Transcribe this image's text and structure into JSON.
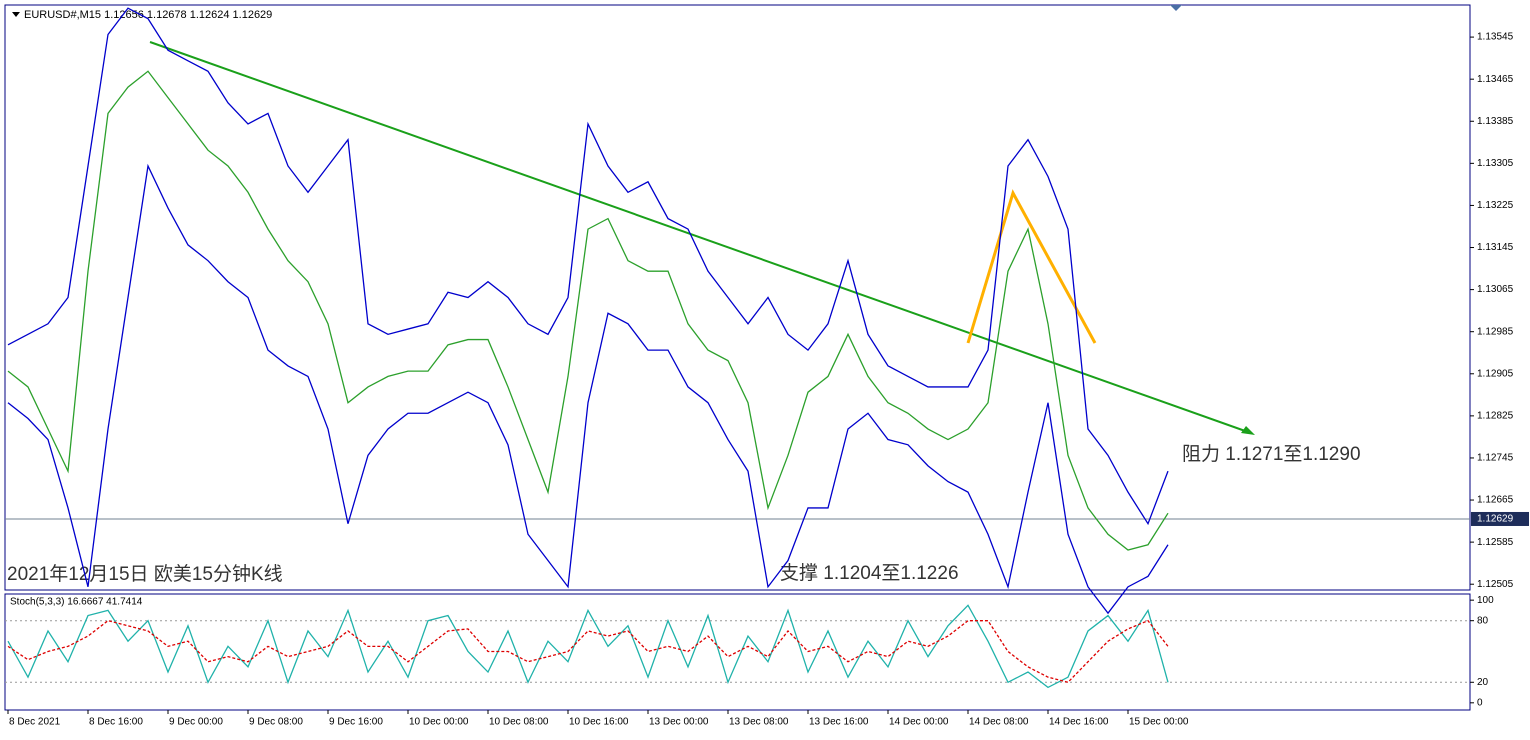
{
  "chart_data": [
    {
      "type": "line",
      "title": "EURUSD#,M15  1.12656 1.12678 1.12624 1.12629",
      "x": [
        0,
        2,
        4,
        6,
        8,
        10,
        12,
        14,
        16,
        18,
        20,
        22,
        24,
        26,
        28,
        30,
        32,
        34,
        36,
        38,
        40,
        42,
        44,
        46,
        48,
        50,
        52,
        54,
        56,
        58,
        60,
        62,
        64,
        66,
        68,
        70,
        72,
        74,
        76,
        78,
        80,
        82,
        84,
        86,
        88,
        90,
        92,
        94,
        96,
        98,
        100,
        102,
        104,
        106,
        108,
        110,
        112,
        114,
        116
      ],
      "series": [
        {
          "color": "#0000cc",
          "values": [
            1.1296,
            1.1298,
            1.13,
            1.1305,
            1.133,
            1.1355,
            1.136,
            1.1358,
            1.1352,
            1.135,
            1.1348,
            1.1342,
            1.1338,
            1.134,
            1.133,
            1.1325,
            1.133,
            1.1335,
            1.13,
            1.1298,
            1.1299,
            1.13,
            1.1306,
            1.1305,
            1.1308,
            1.1305,
            1.13,
            1.1298,
            1.1305,
            1.1338,
            1.133,
            1.1325,
            1.1327,
            1.132,
            1.1318,
            1.131,
            1.1305,
            1.13,
            1.1305,
            1.1298,
            1.1295,
            1.13,
            1.1312,
            1.1298,
            1.1292,
            1.129,
            1.1288,
            1.1288,
            1.1288,
            1.1295,
            1.133,
            1.1335,
            1.1328,
            1.1318,
            1.128,
            1.1275,
            1.1268,
            1.1262,
            1.1272
          ]
        },
        {
          "color": "#0000cc",
          "values": [
            1.1285,
            1.1282,
            1.1278,
            1.1265,
            1.125,
            1.128,
            1.1305,
            1.133,
            1.1322,
            1.1315,
            1.1312,
            1.1308,
            1.1305,
            1.1295,
            1.1292,
            1.129,
            1.128,
            1.1262,
            1.1275,
            1.128,
            1.1283,
            1.1283,
            1.1285,
            1.1287,
            1.1285,
            1.1277,
            1.126,
            1.1255,
            1.125,
            1.1285,
            1.1302,
            1.13,
            1.1295,
            1.1295,
            1.1288,
            1.1285,
            1.1278,
            1.1272,
            1.125,
            1.1255,
            1.1265,
            1.1265,
            1.128,
            1.1283,
            1.1278,
            1.1277,
            1.1273,
            1.127,
            1.1268,
            1.126,
            1.125,
            1.1268,
            1.1285,
            1.126,
            1.125,
            1.1245,
            1.125,
            1.1252,
            1.1258
          ]
        },
        {
          "color": "#2ca02c",
          "values": [
            1.1291,
            1.1288,
            1.128,
            1.1272,
            1.131,
            1.134,
            1.1345,
            1.1348,
            1.1343,
            1.1338,
            1.1333,
            1.133,
            1.1325,
            1.1318,
            1.1312,
            1.1308,
            1.13,
            1.1285,
            1.1288,
            1.129,
            1.1291,
            1.1291,
            1.1296,
            1.1297,
            1.1297,
            1.1288,
            1.1278,
            1.1268,
            1.129,
            1.1318,
            1.132,
            1.1312,
            1.131,
            1.131,
            1.13,
            1.1295,
            1.1293,
            1.1285,
            1.1265,
            1.1275,
            1.1287,
            1.129,
            1.1298,
            1.129,
            1.1285,
            1.1283,
            1.128,
            1.1278,
            1.128,
            1.1285,
            1.131,
            1.1318,
            1.13,
            1.1275,
            1.1265,
            1.126,
            1.1257,
            1.1258,
            1.1264
          ]
        }
      ],
      "current_price": 1.12629,
      "ylim": [
        1.12494,
        1.13606
      ],
      "yticks": [
        1.12505,
        1.12585,
        1.12665,
        1.12745,
        1.12825,
        1.12905,
        1.12985,
        1.13065,
        1.13145,
        1.13225,
        1.13305,
        1.13385,
        1.13465,
        1.13545
      ],
      "xlim": [
        -0.3,
        146.2
      ],
      "xticks": [
        {
          "value": 0,
          "label": "8 Dec 2021"
        },
        {
          "value": 8,
          "label": "8 Dec 16:00"
        },
        {
          "value": 16,
          "label": "9 Dec 00:00"
        },
        {
          "value": 24,
          "label": "9 Dec 08:00"
        },
        {
          "value": 32,
          "label": "9 Dec 16:00"
        },
        {
          "value": 40,
          "label": "10 Dec 00:00"
        },
        {
          "value": 48,
          "label": "10 Dec 08:00"
        },
        {
          "value": 56,
          "label": "10 Dec 16:00"
        },
        {
          "value": 64,
          "label": "13 Dec 00:00"
        },
        {
          "value": 72,
          "label": "13 Dec 08:00"
        },
        {
          "value": 80,
          "label": "13 Dec 16:00"
        },
        {
          "value": 88,
          "label": "14 Dec 00:00"
        },
        {
          "value": 96,
          "label": "14 Dec 08:00"
        },
        {
          "value": 104,
          "label": "14 Dec 16:00"
        },
        {
          "value": 112,
          "label": "15 Dec 00:00"
        }
      ],
      "annotations": [
        "2021年12月15日 欧美15分钟K线",
        "支撑 1.1204至1.1226",
        "阻力 1.1271至1.1290"
      ]
    },
    {
      "type": "line",
      "title": "Stoch(5,3,3) 16.6667 41.7414",
      "x": [
        0,
        2,
        4,
        6,
        8,
        10,
        12,
        14,
        16,
        18,
        20,
        22,
        24,
        26,
        28,
        30,
        32,
        34,
        36,
        38,
        40,
        42,
        44,
        46,
        48,
        50,
        52,
        54,
        56,
        58,
        60,
        62,
        64,
        66,
        68,
        70,
        72,
        74,
        76,
        78,
        80,
        82,
        84,
        86,
        88,
        90,
        92,
        94,
        96,
        98,
        100,
        102,
        104,
        106,
        108,
        110,
        112,
        114,
        116
      ],
      "series": [
        {
          "color": "#20b2aa",
          "dash": false,
          "values": [
            60,
            25,
            70,
            40,
            85,
            90,
            60,
            80,
            30,
            75,
            20,
            55,
            35,
            80,
            20,
            70,
            45,
            90,
            30,
            60,
            25,
            80,
            85,
            50,
            30,
            70,
            20,
            60,
            40,
            90,
            55,
            75,
            25,
            80,
            35,
            85,
            20,
            65,
            40,
            90,
            30,
            70,
            25,
            60,
            35,
            80,
            45,
            75,
            95,
            60,
            20,
            30,
            15,
            25,
            70,
            85,
            60,
            90,
            20
          ]
        },
        {
          "color": "#dd0000",
          "dash": true,
          "values": [
            55,
            42,
            50,
            55,
            65,
            80,
            75,
            70,
            55,
            60,
            40,
            45,
            40,
            55,
            45,
            50,
            55,
            70,
            55,
            55,
            40,
            55,
            70,
            72,
            50,
            50,
            40,
            45,
            50,
            70,
            65,
            70,
            50,
            55,
            50,
            65,
            45,
            55,
            45,
            70,
            50,
            55,
            40,
            50,
            45,
            60,
            55,
            65,
            80,
            80,
            50,
            35,
            25,
            20,
            40,
            60,
            72,
            80,
            55
          ]
        }
      ],
      "ylim": [
        -7,
        106
      ],
      "yticks": [
        0,
        20,
        80,
        100
      ],
      "xlim": [
        -0.3,
        146.2
      ]
    }
  ]
}
